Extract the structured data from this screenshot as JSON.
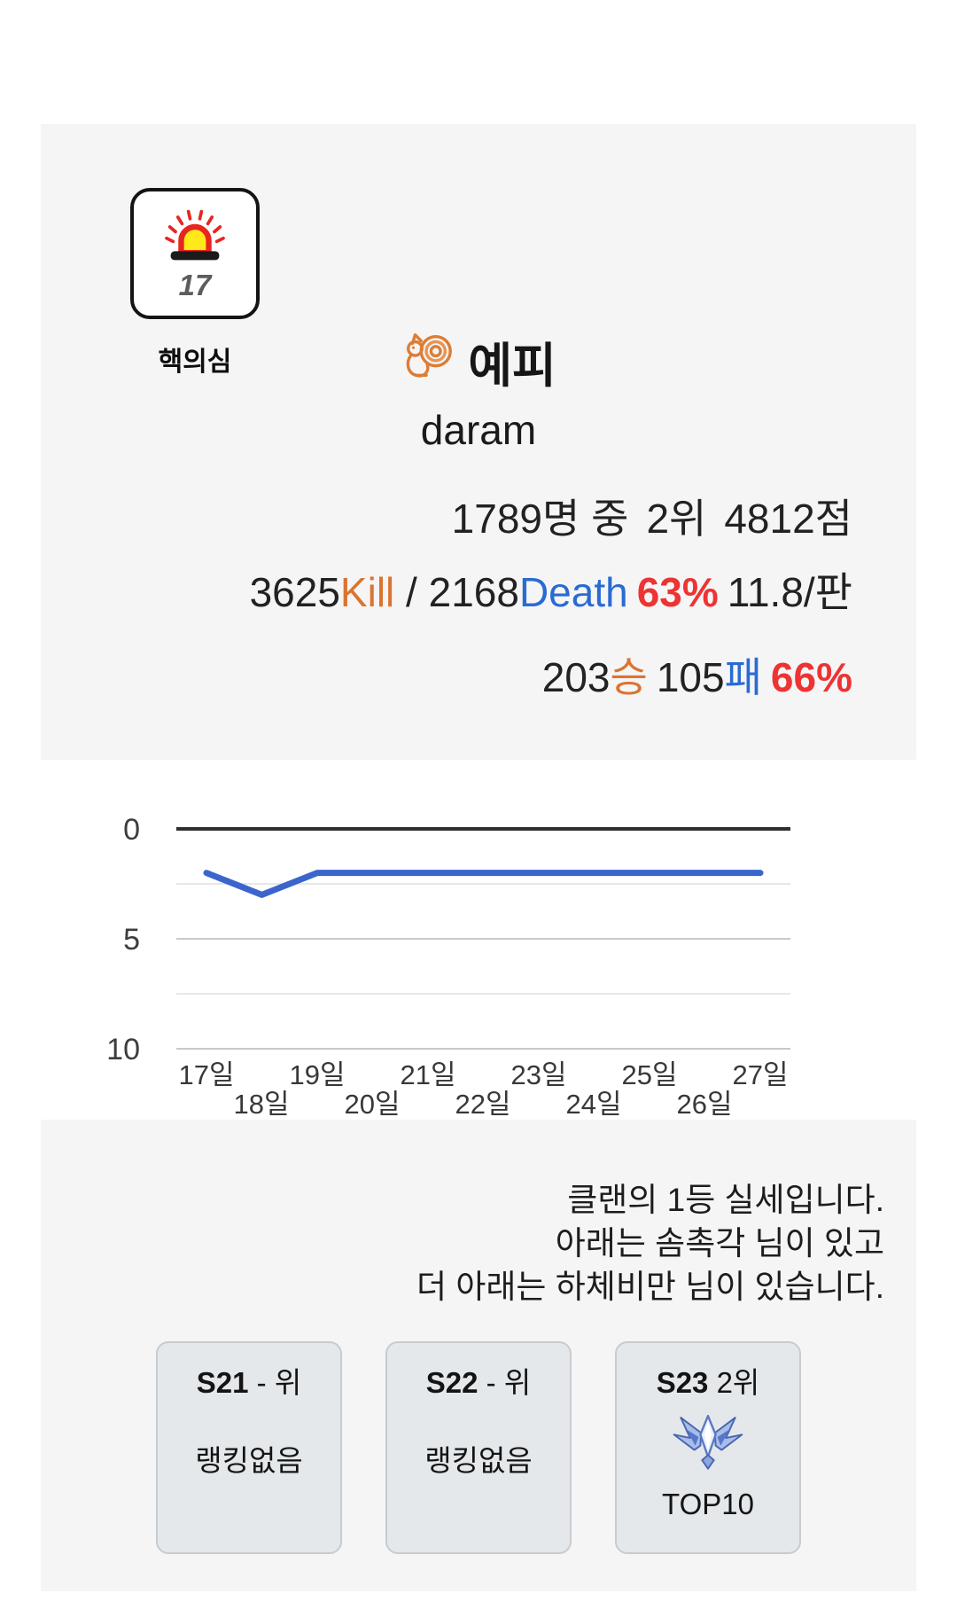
{
  "player_card": {
    "suspect_badge": {
      "icon": "siren-icon",
      "count": "17",
      "label": "핵의심"
    },
    "name": "예피",
    "name_icon": "squirrel-icon",
    "id": "daram",
    "rank_line": {
      "total": "1789명 중",
      "rank": "2위",
      "points": "4812점"
    },
    "kd_line": {
      "kills": "3625",
      "kill_label": "Kill",
      "separator": " / ",
      "deaths": "2168",
      "death_label": "Death",
      "kd_percent": "63%",
      "per_game": "11.8/판"
    },
    "wl_line": {
      "wins": "203",
      "win_label": "승",
      "losses": "105",
      "loss_label": "패",
      "win_percent": "66%"
    }
  },
  "chart_data": {
    "type": "line",
    "title": "",
    "xlabel": "",
    "ylabel": "",
    "x": [
      17,
      18,
      19,
      20,
      21,
      22,
      23,
      24,
      25,
      26,
      27
    ],
    "x_tick_labels": [
      "17일",
      "18일",
      "19일",
      "20일",
      "21일",
      "22일",
      "23일",
      "24일",
      "25일",
      "26일",
      "27일"
    ],
    "series": [
      {
        "name": "daily-rank",
        "values": [
          2,
          3,
          2,
          2,
          2,
          2,
          2,
          2,
          2,
          2,
          2
        ]
      }
    ],
    "y_ticks": [
      0,
      5,
      10
    ],
    "y_tick_labels": [
      "0",
      "5",
      "10"
    ],
    "ylim": [
      0,
      10
    ],
    "y_inverted": true,
    "grid": true,
    "legend": "none",
    "line_color": "#3a66cc"
  },
  "clan_section": {
    "lines": [
      "클랜의 1등 실세입니다.",
      "아래는 솜촉각 님이 있고",
      "더 아래는 하체비만 님이 있습니다."
    ],
    "seasons": [
      {
        "title_bold": "S21",
        "title_rest": " - 위",
        "status": "랭킹없음"
      },
      {
        "title_bold": "S22",
        "title_rest": " - 위",
        "status": "랭킹없음"
      },
      {
        "title_bold": "S23",
        "title_rest": " 2위",
        "status": "TOP10",
        "badge": "rank-badge-icon"
      }
    ]
  },
  "colors": {
    "accent_orange": "#db7430",
    "accent_blue": "#2a6bd2",
    "accent_red": "#ee3333",
    "chart_line": "#3a66cc",
    "card_bg": "#f5f5f6",
    "season_card_bg": "#e4e8eb"
  }
}
